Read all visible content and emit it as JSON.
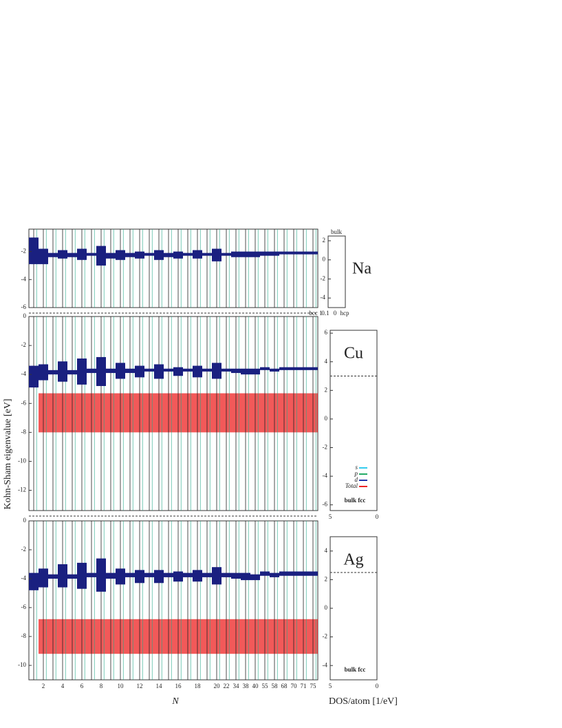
{
  "chart_data": [
    {
      "type": "levels",
      "label": "Na",
      "categories": [
        null,
        "2",
        null,
        "4",
        null,
        "6",
        null,
        "8",
        null,
        "10",
        null,
        "12",
        null,
        "14",
        null,
        "16",
        null,
        "18",
        null,
        "20",
        "22",
        "34",
        "38",
        "40",
        "55",
        "58",
        "68",
        "70",
        "71",
        "75"
      ],
      "homo": [
        -2.9,
        -2.9,
        -2.4,
        -2.5,
        -2.4,
        -2.6,
        -2.3,
        -3.0,
        -2.5,
        -2.6,
        -2.4,
        -2.5,
        -2.3,
        -2.6,
        -2.4,
        -2.5,
        -2.3,
        -2.5,
        -2.3,
        -2.7,
        -2.3,
        -2.4,
        -2.4,
        -2.4,
        -2.3,
        -2.3,
        -2.2,
        -2.2,
        -2.2,
        -2.2
      ],
      "lumo": [
        -1.0,
        -1.8,
        -2.1,
        -1.9,
        -2.1,
        -1.8,
        -2.1,
        -1.6,
        -2.1,
        -1.9,
        -2.1,
        -2.0,
        -2.1,
        -1.9,
        -2.1,
        -2.0,
        -2.1,
        -1.9,
        -2.1,
        -1.8,
        -2.1,
        -2.0,
        -2.0,
        -2.0,
        -2.0,
        -2.0,
        -2.0,
        -2.0,
        -2.0,
        -2.0
      ],
      "ylim": [
        -6,
        -0.4
      ],
      "yticks": [
        -2,
        -4,
        -6
      ]
    },
    {
      "type": "levels",
      "label": "Cu",
      "ylabel": "Kohn-Sham eigenvalue [eV]",
      "categories": [
        null,
        "2",
        null,
        "4",
        null,
        "6",
        null,
        "8",
        null,
        "10",
        null,
        "12",
        null,
        "14",
        null,
        "16",
        null,
        "18",
        null,
        "20",
        "22",
        "34",
        "38",
        "40",
        "55",
        "58",
        "68",
        "70",
        "71",
        "75"
      ],
      "homo": [
        -4.9,
        -4.4,
        -4.0,
        -4.5,
        -4.0,
        -4.7,
        -3.9,
        -4.8,
        -3.9,
        -4.3,
        -3.9,
        -4.2,
        -3.8,
        -4.3,
        -3.8,
        -4.1,
        -3.8,
        -4.2,
        -3.8,
        -4.3,
        -3.8,
        -3.9,
        -4.0,
        -4.0,
        -3.7,
        -3.8,
        -3.7,
        -3.7,
        -3.7,
        -3.7
      ],
      "lumo": [
        -3.4,
        -3.3,
        -3.7,
        -3.1,
        -3.7,
        -2.9,
        -3.6,
        -2.8,
        -3.6,
        -3.2,
        -3.6,
        -3.4,
        -3.6,
        -3.3,
        -3.6,
        -3.5,
        -3.6,
        -3.4,
        -3.6,
        -3.2,
        -3.6,
        -3.6,
        -3.6,
        -3.6,
        -3.5,
        -3.6,
        -3.5,
        -3.5,
        -3.5,
        -3.5
      ],
      "d_band": [
        -5.3,
        -8.0
      ],
      "ylim": [
        -13.4,
        0
      ],
      "yticks": [
        0,
        -2,
        -4,
        -6,
        -8,
        -10,
        -12
      ]
    },
    {
      "type": "levels",
      "label": "Ag",
      "xlabel": "N",
      "categories": [
        null,
        "2",
        null,
        "4",
        null,
        "6",
        null,
        "8",
        null,
        "10",
        null,
        "12",
        null,
        "14",
        null,
        "16",
        null,
        "18",
        null,
        "20",
        "22",
        "34",
        "38",
        "40",
        "55",
        "58",
        "68",
        "70",
        "71",
        "75"
      ],
      "homo": [
        -4.8,
        -4.6,
        -4.0,
        -4.6,
        -4.0,
        -4.7,
        -3.9,
        -4.9,
        -4.0,
        -4.4,
        -3.9,
        -4.3,
        -3.9,
        -4.3,
        -3.9,
        -4.2,
        -3.9,
        -4.2,
        -3.9,
        -4.4,
        -3.9,
        -4.0,
        -4.1,
        -4.1,
        -3.8,
        -3.9,
        -3.8,
        -3.8,
        -3.8,
        -3.8
      ],
      "lumo": [
        -3.6,
        -3.3,
        -3.7,
        -3.0,
        -3.7,
        -2.9,
        -3.6,
        -2.6,
        -3.6,
        -3.3,
        -3.6,
        -3.4,
        -3.6,
        -3.4,
        -3.6,
        -3.5,
        -3.6,
        -3.4,
        -3.6,
        -3.2,
        -3.6,
        -3.6,
        -3.6,
        -3.7,
        -3.5,
        -3.6,
        -3.5,
        -3.5,
        -3.5,
        -3.5
      ],
      "d_band": [
        -6.8,
        -9.2
      ],
      "ylim": [
        -11,
        0
      ],
      "yticks": [
        0,
        -2,
        -4,
        -6,
        -8,
        -10
      ]
    },
    {
      "type": "dos",
      "top_label": "bulk",
      "bottom_labels": [
        "bcc 1",
        "0.1",
        "0",
        "hcp"
      ],
      "ylim": [
        -5,
        2.5
      ],
      "yticks": [
        2,
        0,
        -2,
        -4
      ]
    },
    {
      "type": "dos",
      "label": "Cu",
      "note": "bulk fcc",
      "legend": [
        {
          "name": "s",
          "color": "#33ccee"
        },
        {
          "name": "p",
          "color": "#22aa66"
        },
        {
          "name": "d",
          "color": "#2233aa"
        },
        {
          "name": "Total",
          "color": "#ee2222"
        }
      ],
      "ylim": [
        -6.4,
        6.2
      ],
      "yticks": [
        6,
        4,
        2,
        0,
        -2,
        -4,
        -6
      ],
      "xticks": [
        5,
        0
      ],
      "fermi": 3
    },
    {
      "type": "dos",
      "label": "Ag",
      "note": "bulk fcc",
      "xlabel": "DOS/atom [1/eV]",
      "ylim": [
        -5,
        5
      ],
      "yticks": [
        4,
        2,
        0,
        -2,
        -4
      ],
      "xticks": [
        5,
        0
      ],
      "fermi": 2.5
    }
  ]
}
